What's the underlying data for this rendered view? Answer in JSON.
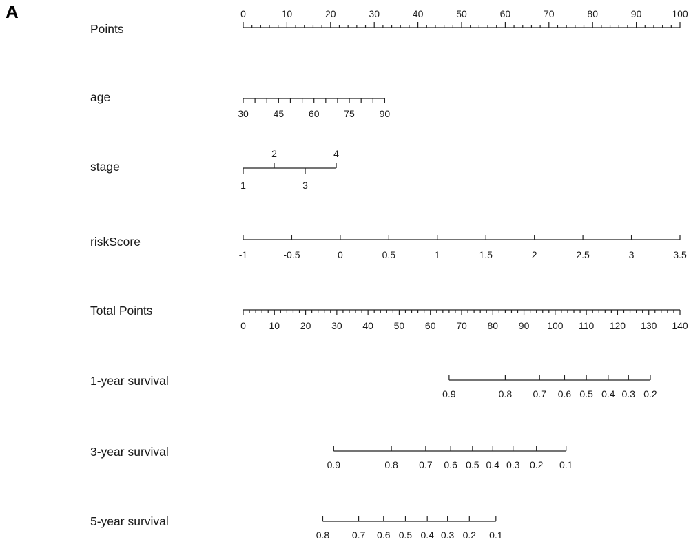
{
  "panel_label": "A",
  "chart_data": {
    "type": "nomogram",
    "rows": [
      {
        "id": "points",
        "label": "Points",
        "domain": [
          0,
          100
        ],
        "points_range": [
          0,
          100
        ],
        "major_ticks": [
          0,
          10,
          20,
          30,
          40,
          50,
          60,
          70,
          80,
          90,
          100
        ],
        "minor_step": 2,
        "labels_above": [
          0,
          10,
          20,
          30,
          40,
          50,
          60,
          70,
          80,
          90,
          100
        ],
        "labels_below": []
      },
      {
        "id": "age",
        "label": "age",
        "domain": [
          30,
          90
        ],
        "points_range": [
          0,
          32.4
        ],
        "major_ticks": [
          30,
          35,
          40,
          45,
          50,
          55,
          60,
          65,
          70,
          75,
          80,
          85,
          90
        ],
        "labels_above": [],
        "labels_below": [
          30,
          45,
          60,
          75,
          90
        ]
      },
      {
        "id": "stage",
        "label": "stage",
        "domain": [
          1,
          4
        ],
        "points_range": [
          0,
          21.3
        ],
        "major_ticks": [
          1,
          2,
          3,
          4
        ],
        "labels_above": [
          2,
          4
        ],
        "labels_below": [
          1,
          3
        ]
      },
      {
        "id": "riskScore",
        "label": "riskScore",
        "domain": [
          -1,
          3.5
        ],
        "points_range": [
          0,
          100
        ],
        "major_ticks": [
          -1,
          -0.5,
          0,
          0.5,
          1,
          1.5,
          2,
          2.5,
          3,
          3.5
        ],
        "labels_above": [],
        "labels_below": [
          "-1",
          "-0.5",
          "0",
          "0.5",
          "1",
          "1.5",
          "2",
          "2.5",
          "3",
          "3.5"
        ]
      },
      {
        "id": "total",
        "label": "Total Points",
        "domain": [
          0,
          140
        ],
        "points_range": [
          0,
          100
        ],
        "major_ticks": [
          0,
          10,
          20,
          30,
          40,
          50,
          60,
          70,
          80,
          90,
          100,
          110,
          120,
          130,
          140
        ],
        "minor_step": 2,
        "labels_above": [],
        "labels_below": [
          0,
          10,
          20,
          30,
          40,
          50,
          60,
          70,
          80,
          90,
          100,
          110,
          120,
          130,
          140
        ]
      },
      {
        "id": "surv1",
        "label": "1-year survival",
        "total_points": [
          66,
          84,
          95,
          103,
          110,
          117,
          123.5,
          130.5
        ],
        "labels_below": [
          "0.9",
          "0.8",
          "0.7",
          "0.6",
          "0.5",
          "0.4",
          "0.3",
          "0.2"
        ]
      },
      {
        "id": "surv3",
        "label": "3-year survival",
        "total_points": [
          29,
          47.5,
          58.5,
          66.5,
          73.5,
          80,
          86.5,
          94,
          103.5
        ],
        "labels_below": [
          "0.9",
          "0.8",
          "0.7",
          "0.6",
          "0.5",
          "0.4",
          "0.3",
          "0.2",
          "0.1"
        ]
      },
      {
        "id": "surv5",
        "label": "5-year survival",
        "total_points": [
          25.5,
          37,
          45,
          52,
          59,
          65.5,
          72.5,
          81
        ],
        "labels_below": [
          "0.8",
          "0.7",
          "0.6",
          "0.5",
          "0.4",
          "0.3",
          "0.2",
          "0.1"
        ]
      }
    ]
  }
}
